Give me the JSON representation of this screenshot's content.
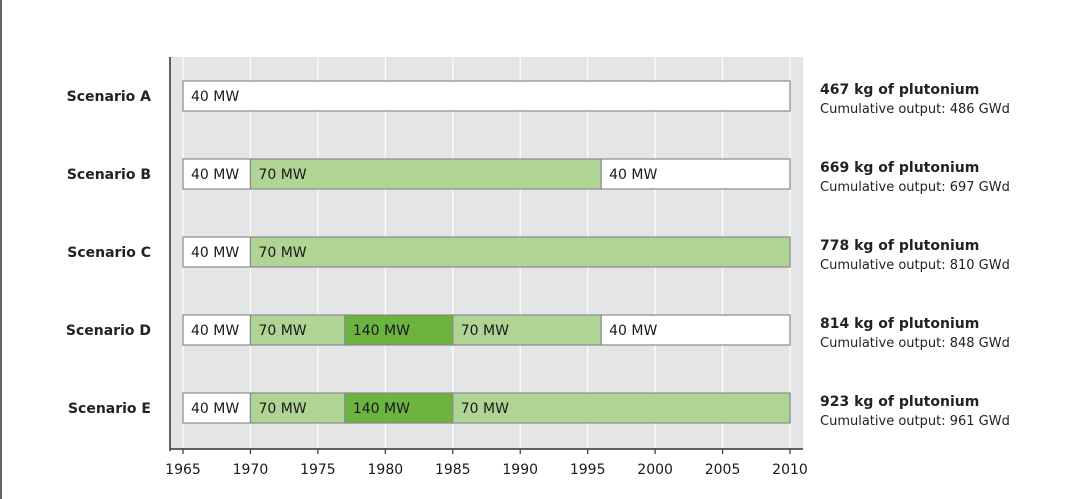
{
  "chart_data": {
    "type": "bar",
    "orientation": "horizontal-timeline",
    "xlim": [
      1965,
      2010
    ],
    "x_ticks": [
      "1965",
      "1970",
      "1975",
      "1980",
      "1985",
      "1990",
      "1995",
      "2000",
      "2005",
      "2010"
    ],
    "grid": true,
    "colors": {
      "40 MW": "#ffffff",
      "70 MW": "#b0d494",
      "140 MW": "#6db33f",
      "plot_bg": "#e4e5e7",
      "grid": "#ffffff",
      "bar_border": "#8a8a8a",
      "axis": "#333333"
    },
    "scenarios": [
      {
        "name": "Scenario A",
        "segments": [
          {
            "label": "40 MW",
            "start": 1965,
            "end": 2010
          }
        ],
        "plutonium": "467 kg of plutonium",
        "output": "Cumulative output: 486 GWd"
      },
      {
        "name": "Scenario B",
        "segments": [
          {
            "label": "40 MW",
            "start": 1965,
            "end": 1970
          },
          {
            "label": "70 MW",
            "start": 1970,
            "end": 1996
          },
          {
            "label": "40 MW",
            "start": 1996,
            "end": 2010
          }
        ],
        "plutonium": "669 kg of plutonium",
        "output": "Cumulative output: 697 GWd"
      },
      {
        "name": "Scenario C",
        "segments": [
          {
            "label": "40 MW",
            "start": 1965,
            "end": 1970
          },
          {
            "label": "70 MW",
            "start": 1970,
            "end": 2010
          }
        ],
        "plutonium": "778 kg of plutonium",
        "output": "Cumulative output: 810 GWd"
      },
      {
        "name": "Scenario D",
        "segments": [
          {
            "label": "40 MW",
            "start": 1965,
            "end": 1970
          },
          {
            "label": "70 MW",
            "start": 1970,
            "end": 1977
          },
          {
            "label": "140 MW",
            "start": 1977,
            "end": 1985
          },
          {
            "label": "70 MW",
            "start": 1985,
            "end": 1996
          },
          {
            "label": "40 MW",
            "start": 1996,
            "end": 2010
          }
        ],
        "plutonium": "814 kg of plutonium",
        "output": "Cumulative output: 848 GWd"
      },
      {
        "name": "Scenario E",
        "segments": [
          {
            "label": "40 MW",
            "start": 1965,
            "end": 1970
          },
          {
            "label": "70 MW",
            "start": 1970,
            "end": 1977
          },
          {
            "label": "140 MW",
            "start": 1977,
            "end": 1985
          },
          {
            "label": "70 MW",
            "start": 1985,
            "end": 2010
          }
        ],
        "plutonium": "923 kg of plutonium",
        "output": "Cumulative output: 961 GWd"
      }
    ]
  }
}
